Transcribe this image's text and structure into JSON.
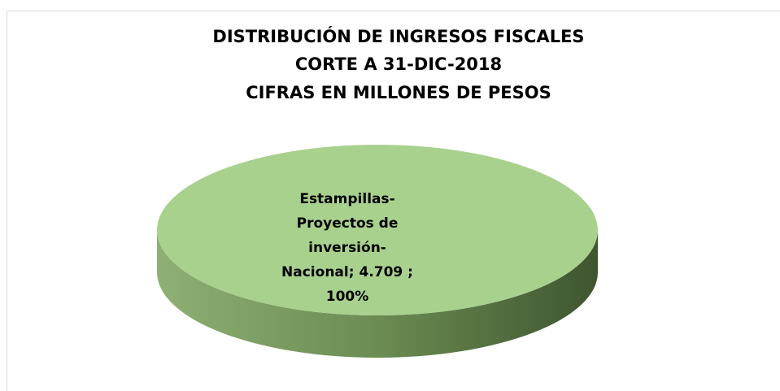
{
  "chart_data": {
    "type": "pie",
    "title": [
      "DISTRIBUCIÓN DE INGRESOS FISCALES",
      "CORTE A 31-DIC-2018",
      "CIFRAS EN MILLONES DE PESOS"
    ],
    "categories": [
      "Estampillas-Proyectos de inversión-Nacional"
    ],
    "values": [
      4709
    ],
    "value_labels": [
      "4.709"
    ],
    "percents": [
      100
    ],
    "percent_labels": [
      "100%"
    ],
    "label_separator": ";",
    "color": "#a9d18e",
    "three_d": true
  }
}
